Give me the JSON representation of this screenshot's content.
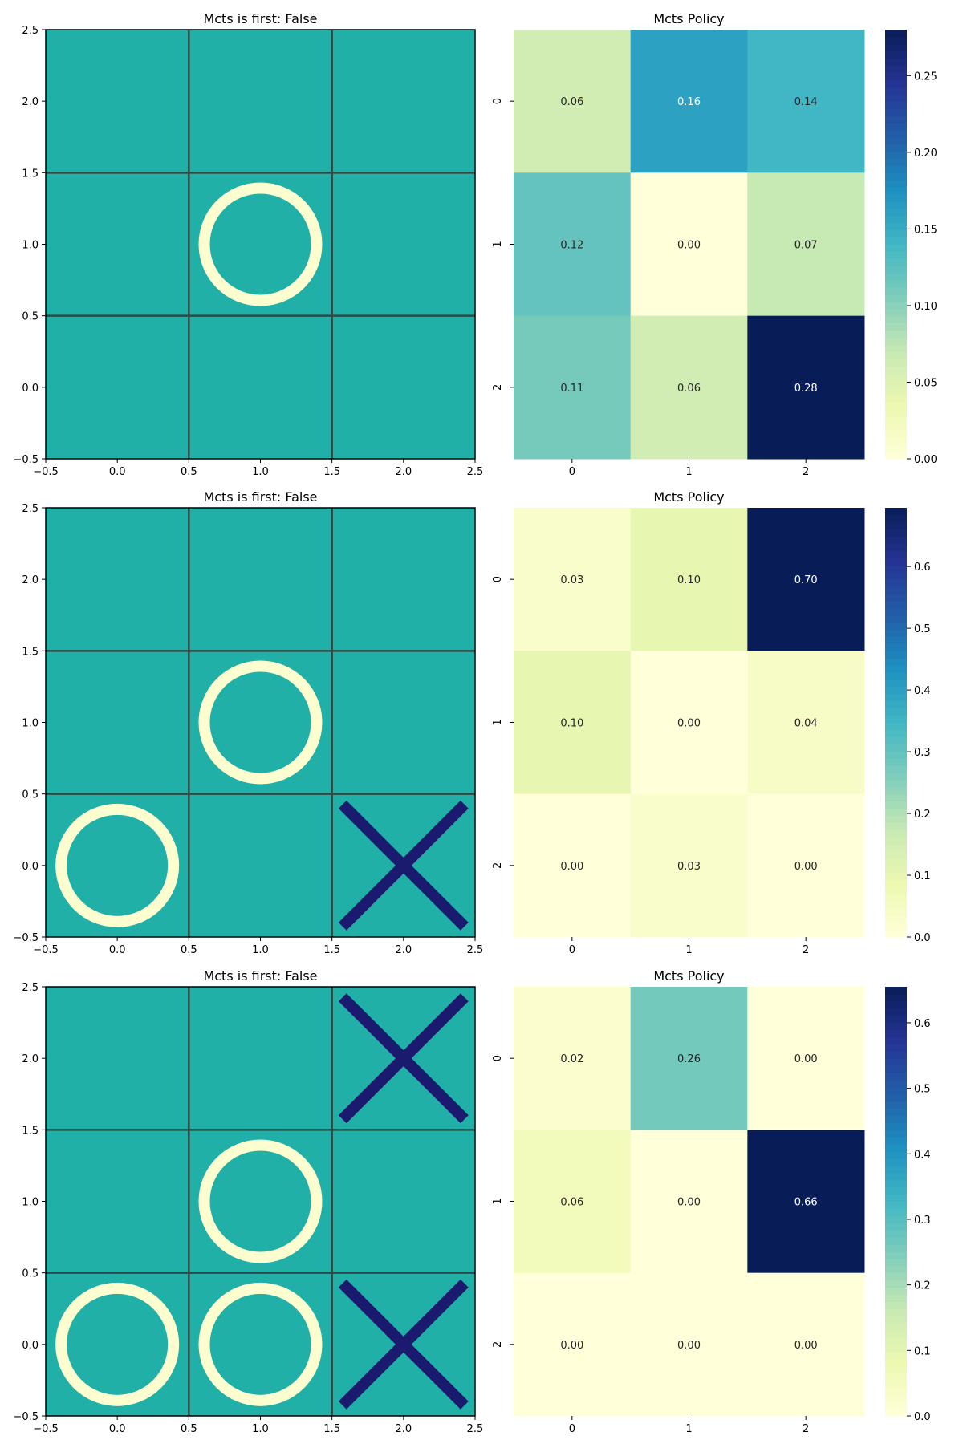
{
  "colors": {
    "board": "#20b0a8",
    "grid_line": "#2a4a46",
    "circle": "#fdfed0",
    "cross": "#1a1a6e",
    "ylgnbu": [
      "#ffffd9",
      "#edf8b1",
      "#c7e9b4",
      "#7fcdbb",
      "#41b6c4",
      "#1d91c0",
      "#225ea8",
      "#253494",
      "#081d58"
    ]
  },
  "chart_data": [
    {
      "type": "board",
      "title": "Mcts is first: False",
      "xlim": [
        -0.5,
        2.5
      ],
      "ylim": [
        -0.5,
        2.5
      ],
      "xticks": [
        "−0.5",
        "0.0",
        "0.5",
        "1.0",
        "1.5",
        "2.0",
        "2.5"
      ],
      "yticks": [
        "−0.5",
        "0.0",
        "0.5",
        "1.0",
        "1.5",
        "2.0",
        "2.5"
      ],
      "pieces": [
        {
          "mark": "O",
          "x": 1,
          "y": 1
        }
      ]
    },
    {
      "type": "heatmap",
      "title": "Mcts Policy",
      "xticklabels": [
        "0",
        "1",
        "2"
      ],
      "yticklabels": [
        "0",
        "1",
        "2"
      ],
      "values": [
        [
          0.06,
          0.16,
          0.14
        ],
        [
          0.12,
          0.0,
          0.07
        ],
        [
          0.11,
          0.06,
          0.28
        ]
      ],
      "colorbar": {
        "min": 0,
        "max": 0.28,
        "ticks": [
          "0.00",
          "0.05",
          "0.10",
          "0.15",
          "0.20",
          "0.25"
        ]
      }
    },
    {
      "type": "board",
      "title": "Mcts is first: False",
      "xlim": [
        -0.5,
        2.5
      ],
      "ylim": [
        -0.5,
        2.5
      ],
      "xticks": [
        "−0.5",
        "0.0",
        "0.5",
        "1.0",
        "1.5",
        "2.0",
        "2.5"
      ],
      "yticks": [
        "−0.5",
        "0.0",
        "0.5",
        "1.0",
        "1.5",
        "2.0",
        "2.5"
      ],
      "pieces": [
        {
          "mark": "O",
          "x": 1,
          "y": 1
        },
        {
          "mark": "O",
          "x": 0,
          "y": 0
        },
        {
          "mark": "X",
          "x": 2,
          "y": 0
        }
      ]
    },
    {
      "type": "heatmap",
      "title": "Mcts Policy",
      "xticklabels": [
        "0",
        "1",
        "2"
      ],
      "yticklabels": [
        "0",
        "1",
        "2"
      ],
      "values": [
        [
          0.03,
          0.1,
          0.7
        ],
        [
          0.1,
          0.0,
          0.04
        ],
        [
          0.0,
          0.03,
          0.0
        ]
      ],
      "colorbar": {
        "min": 0,
        "max": 0.695,
        "ticks": [
          "0.0",
          "0.1",
          "0.2",
          "0.3",
          "0.4",
          "0.5",
          "0.6"
        ]
      }
    },
    {
      "type": "board",
      "title": "Mcts is first: False",
      "xlim": [
        -0.5,
        2.5
      ],
      "ylim": [
        -0.5,
        2.5
      ],
      "xticks": [
        "−0.5",
        "0.0",
        "0.5",
        "1.0",
        "1.5",
        "2.0",
        "2.5"
      ],
      "yticks": [
        "−0.5",
        "0.0",
        "0.5",
        "1.0",
        "1.5",
        "2.0",
        "2.5"
      ],
      "pieces": [
        {
          "mark": "X",
          "x": 2,
          "y": 2
        },
        {
          "mark": "O",
          "x": 1,
          "y": 1
        },
        {
          "mark": "O",
          "x": 0,
          "y": 0
        },
        {
          "mark": "O",
          "x": 1,
          "y": 0
        },
        {
          "mark": "X",
          "x": 2,
          "y": 0
        }
      ]
    },
    {
      "type": "heatmap",
      "title": "Mcts Policy",
      "xticklabels": [
        "0",
        "1",
        "2"
      ],
      "yticklabels": [
        "0",
        "1",
        "2"
      ],
      "values": [
        [
          0.02,
          0.26,
          0.0
        ],
        [
          0.06,
          0.0,
          0.66
        ],
        [
          0.0,
          0.0,
          0.0
        ]
      ],
      "colorbar": {
        "min": 0,
        "max": 0.655,
        "ticks": [
          "0.0",
          "0.1",
          "0.2",
          "0.3",
          "0.4",
          "0.5",
          "0.6"
        ]
      }
    }
  ]
}
